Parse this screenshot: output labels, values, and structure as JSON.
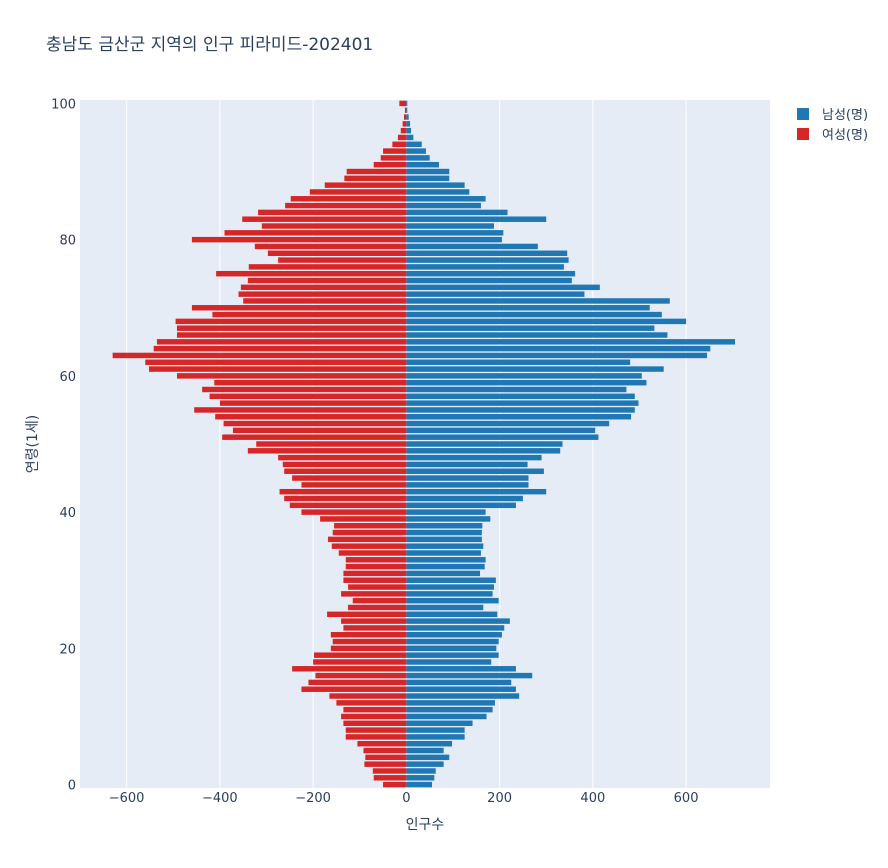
{
  "chart_data": {
    "type": "bar",
    "orientation": "horizontal",
    "title": "충남도 금산군 지역의 인구 피라미드-202401",
    "xlabel": "인구수",
    "ylabel": "연령(1세)",
    "xlim": [
      -700,
      780
    ],
    "ylim": [
      -0.5,
      100.5
    ],
    "xticks": [
      -600,
      -400,
      -200,
      0,
      200,
      400,
      600
    ],
    "xtick_labels": [
      "−600",
      "−400",
      "−200",
      "0",
      "200",
      "400",
      "600"
    ],
    "yticks": [
      0,
      20,
      40,
      60,
      80,
      100
    ],
    "ytick_labels": [
      "0",
      "20",
      "40",
      "60",
      "80",
      "100"
    ],
    "grid": true,
    "legend_position": "top-right",
    "ages": [
      0,
      1,
      2,
      3,
      4,
      5,
      6,
      7,
      8,
      9,
      10,
      11,
      12,
      13,
      14,
      15,
      16,
      17,
      18,
      19,
      20,
      21,
      22,
      23,
      24,
      25,
      26,
      27,
      28,
      29,
      30,
      31,
      32,
      33,
      34,
      35,
      36,
      37,
      38,
      39,
      40,
      41,
      42,
      43,
      44,
      45,
      46,
      47,
      48,
      49,
      50,
      51,
      52,
      53,
      54,
      55,
      56,
      57,
      58,
      59,
      60,
      61,
      62,
      63,
      64,
      65,
      66,
      67,
      68,
      69,
      70,
      71,
      72,
      73,
      74,
      75,
      76,
      77,
      78,
      79,
      80,
      81,
      82,
      83,
      84,
      85,
      86,
      87,
      88,
      89,
      90,
      91,
      92,
      93,
      94,
      95,
      96,
      97,
      98,
      99,
      100
    ],
    "series": [
      {
        "name": "남성(명)",
        "color": "#1f77b4",
        "values": [
          55,
          60,
          63,
          80,
          92,
          80,
          98,
          125,
          125,
          142,
          172,
          185,
          190,
          242,
          235,
          225,
          270,
          235,
          182,
          198,
          193,
          198,
          205,
          210,
          222,
          195,
          165,
          198,
          185,
          188,
          192,
          158,
          168,
          170,
          160,
          165,
          162,
          162,
          163,
          180,
          170,
          235,
          250,
          300,
          262,
          262,
          295,
          260,
          290,
          330,
          335,
          412,
          405,
          435,
          482,
          490,
          498,
          490,
          472,
          515,
          505,
          552,
          480,
          645,
          652,
          705,
          560,
          532,
          600,
          548,
          522,
          565,
          382,
          415,
          355,
          362,
          338,
          348,
          345,
          282,
          205,
          208,
          188,
          300,
          217,
          160,
          170,
          135,
          125,
          92,
          92,
          70,
          50,
          42,
          33,
          15,
          10,
          8,
          5,
          2,
          2
        ]
      },
      {
        "name": "여성(명)",
        "color": "#d62728",
        "values": [
          -50,
          -70,
          -72,
          -90,
          -88,
          -92,
          -105,
          -130,
          -130,
          -135,
          -140,
          -135,
          -150,
          -165,
          -225,
          -210,
          -195,
          -245,
          -200,
          -198,
          -162,
          -158,
          -162,
          -135,
          -140,
          -170,
          -125,
          -115,
          -140,
          -125,
          -135,
          -135,
          -130,
          -130,
          -145,
          -160,
          -168,
          -158,
          -155,
          -185,
          -225,
          -250,
          -262,
          -272,
          -225,
          -245,
          -262,
          -265,
          -275,
          -340,
          -322,
          -395,
          -372,
          -392,
          -410,
          -455,
          -400,
          -422,
          -438,
          -412,
          -492,
          -552,
          -560,
          -630,
          -542,
          -535,
          -492,
          -492,
          -495,
          -416,
          -460,
          -350,
          -360,
          -355,
          -340,
          -408,
          -338,
          -275,
          -297,
          -325,
          -460,
          -390,
          -310,
          -352,
          -318,
          -260,
          -248,
          -207,
          -175,
          -133,
          -128,
          -70,
          -55,
          -50,
          -30,
          -18,
          -12,
          -8,
          -5,
          -3,
          -15
        ]
      }
    ]
  }
}
